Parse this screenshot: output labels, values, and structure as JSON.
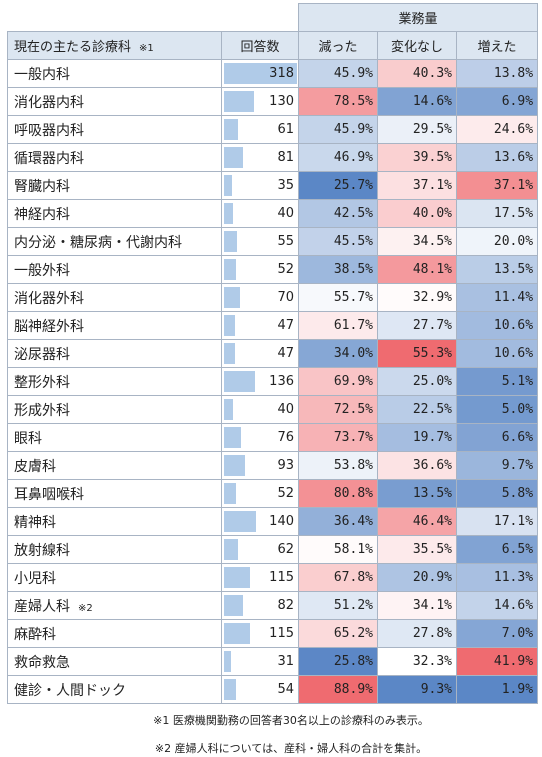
{
  "header": {
    "group_label": "業務量",
    "dept_label": "現在の主たる診療科",
    "dept_note": "※1",
    "responses_label": "回答数",
    "decreased_label": "減った",
    "no_change_label": "変化なし",
    "increased_label": "増えた"
  },
  "rows": [
    {
      "dept": "一般内科",
      "note": "",
      "responses": "318",
      "decreased": "45.9%",
      "no_change": "40.3%",
      "increased": "13.8%"
    },
    {
      "dept": "消化器内科",
      "note": "",
      "responses": "130",
      "decreased": "78.5%",
      "no_change": "14.6%",
      "increased": "6.9%"
    },
    {
      "dept": "呼吸器内科",
      "note": "",
      "responses": "61",
      "decreased": "45.9%",
      "no_change": "29.5%",
      "increased": "24.6%"
    },
    {
      "dept": "循環器内科",
      "note": "",
      "responses": "81",
      "decreased": "46.9%",
      "no_change": "39.5%",
      "increased": "13.6%"
    },
    {
      "dept": "腎臓内科",
      "note": "",
      "responses": "35",
      "decreased": "25.7%",
      "no_change": "37.1%",
      "increased": "37.1%"
    },
    {
      "dept": "神経内科",
      "note": "",
      "responses": "40",
      "decreased": "42.5%",
      "no_change": "40.0%",
      "increased": "17.5%"
    },
    {
      "dept": "内分泌・糖尿病・代謝内科",
      "note": "",
      "responses": "55",
      "decreased": "45.5%",
      "no_change": "34.5%",
      "increased": "20.0%"
    },
    {
      "dept": "一般外科",
      "note": "",
      "responses": "52",
      "decreased": "38.5%",
      "no_change": "48.1%",
      "increased": "13.5%"
    },
    {
      "dept": "消化器外科",
      "note": "",
      "responses": "70",
      "decreased": "55.7%",
      "no_change": "32.9%",
      "increased": "11.4%"
    },
    {
      "dept": "脳神経外科",
      "note": "",
      "responses": "47",
      "decreased": "61.7%",
      "no_change": "27.7%",
      "increased": "10.6%"
    },
    {
      "dept": "泌尿器科",
      "note": "",
      "responses": "47",
      "decreased": "34.0%",
      "no_change": "55.3%",
      "increased": "10.6%"
    },
    {
      "dept": "整形外科",
      "note": "",
      "responses": "136",
      "decreased": "69.9%",
      "no_change": "25.0%",
      "increased": "5.1%"
    },
    {
      "dept": "形成外科",
      "note": "",
      "responses": "40",
      "decreased": "72.5%",
      "no_change": "22.5%",
      "increased": "5.0%"
    },
    {
      "dept": "眼科",
      "note": "",
      "responses": "76",
      "decreased": "73.7%",
      "no_change": "19.7%",
      "increased": "6.6%"
    },
    {
      "dept": "皮膚科",
      "note": "",
      "responses": "93",
      "decreased": "53.8%",
      "no_change": "36.6%",
      "increased": "9.7%"
    },
    {
      "dept": "耳鼻咽喉科",
      "note": "",
      "responses": "52",
      "decreased": "80.8%",
      "no_change": "13.5%",
      "increased": "5.8%"
    },
    {
      "dept": "精神科",
      "note": "",
      "responses": "140",
      "decreased": "36.4%",
      "no_change": "46.4%",
      "increased": "17.1%"
    },
    {
      "dept": "放射線科",
      "note": "",
      "responses": "62",
      "decreased": "58.1%",
      "no_change": "35.5%",
      "increased": "6.5%"
    },
    {
      "dept": "小児科",
      "note": "",
      "responses": "115",
      "decreased": "67.8%",
      "no_change": "20.9%",
      "increased": "11.3%"
    },
    {
      "dept": "産婦人科",
      "note": "※2",
      "responses": "82",
      "decreased": "51.2%",
      "no_change": "34.1%",
      "increased": "14.6%"
    },
    {
      "dept": "麻酔科",
      "note": "",
      "responses": "115",
      "decreased": "65.2%",
      "no_change": "27.8%",
      "increased": "7.0%"
    },
    {
      "dept": "救命救急",
      "note": "",
      "responses": "31",
      "decreased": "25.8%",
      "no_change": "32.3%",
      "increased": "41.9%"
    },
    {
      "dept": "健診・人間ドック",
      "note": "",
      "responses": "54",
      "decreased": "88.9%",
      "no_change": "9.3%",
      "increased": "1.9%"
    }
  ],
  "footnotes": {
    "note1": "※1 医療機関勤務の回答者30名以上の診療科のみ表示。",
    "note2": "※2 産婦人科については、産科・婦人科の合計を集計。"
  },
  "colors": {
    "header_bg": "#dce6f1",
    "bar": "#b0cbe8",
    "low": "#5b87c6",
    "mid": "#ffffff",
    "high": "#ef6b70"
  }
}
